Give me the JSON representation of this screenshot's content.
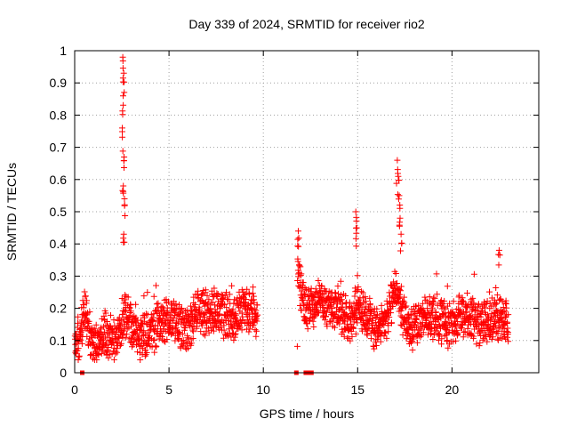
{
  "chart_data": {
    "type": "scatter",
    "title": "Day 339 of 2024, SRMTID for receiver rio2",
    "xlabel": "GPS time / hours",
    "ylabel": "SRMTID / TECUs",
    "xlim": [
      0,
      24.6
    ],
    "ylim": [
      0,
      1
    ],
    "xticks": [
      0,
      5,
      10,
      15,
      20
    ],
    "yticks": [
      0,
      0.1,
      0.2,
      0.3,
      0.4,
      0.5,
      0.6,
      0.7,
      0.8,
      0.9,
      1
    ],
    "xtick_labels": [
      "0",
      "5",
      "10",
      "15",
      "20"
    ],
    "ytick_labels": [
      "0",
      "0.1",
      "0.2",
      "0.3",
      "0.4",
      "0.5",
      "0.6",
      "0.7",
      "0.8",
      "0.9",
      "1"
    ],
    "grid": true,
    "marker": "+",
    "series_color": "#ff0000",
    "series": [
      {
        "name": "SRMTID",
        "segments": [
          {
            "x_start": 0.0,
            "x_end": 9.7,
            "baseline": [
              [
                0.0,
                0.08
              ],
              [
                0.3,
                0.1
              ],
              [
                0.5,
                0.2
              ],
              [
                0.8,
                0.12
              ],
              [
                1.0,
                0.08
              ],
              [
                1.5,
                0.12
              ],
              [
                2.0,
                0.1
              ],
              [
                2.3,
                0.12
              ],
              [
                2.6,
                0.17
              ],
              [
                3.0,
                0.15
              ],
              [
                3.5,
                0.11
              ],
              [
                4.0,
                0.12
              ],
              [
                4.5,
                0.16
              ],
              [
                5.0,
                0.17
              ],
              [
                5.5,
                0.15
              ],
              [
                6.0,
                0.13
              ],
              [
                6.5,
                0.2
              ],
              [
                7.0,
                0.18
              ],
              [
                7.5,
                0.19
              ],
              [
                8.0,
                0.18
              ],
              [
                8.5,
                0.17
              ],
              [
                9.0,
                0.19
              ],
              [
                9.5,
                0.18
              ],
              [
                9.7,
                0.17
              ]
            ]
          },
          {
            "x_start": 11.8,
            "x_end": 23.0,
            "baseline": [
              [
                11.8,
                0.32
              ],
              [
                12.2,
                0.21
              ],
              [
                13.0,
                0.22
              ],
              [
                13.5,
                0.2
              ],
              [
                14.0,
                0.2
              ],
              [
                14.5,
                0.16
              ],
              [
                15.0,
                0.2
              ],
              [
                15.5,
                0.18
              ],
              [
                16.0,
                0.13
              ],
              [
                16.5,
                0.17
              ],
              [
                17.0,
                0.25
              ],
              [
                17.3,
                0.2
              ],
              [
                17.8,
                0.14
              ],
              [
                18.5,
                0.17
              ],
              [
                19.0,
                0.18
              ],
              [
                19.5,
                0.16
              ],
              [
                20.0,
                0.15
              ],
              [
                20.5,
                0.18
              ],
              [
                21.0,
                0.17
              ],
              [
                21.5,
                0.15
              ],
              [
                22.0,
                0.17
              ],
              [
                22.6,
                0.16
              ],
              [
                23.0,
                0.14
              ]
            ]
          }
        ],
        "peaks": [
          {
            "x": 2.55,
            "y": 0.98
          },
          {
            "x": 2.6,
            "y": 0.93
          },
          {
            "x": 2.57,
            "y": 0.86
          },
          {
            "x": 2.52,
            "y": 0.76
          },
          {
            "x": 2.62,
            "y": 0.67
          },
          {
            "x": 2.58,
            "y": 0.58
          },
          {
            "x": 2.64,
            "y": 0.54
          },
          {
            "x": 2.6,
            "y": 0.43
          },
          {
            "x": 11.85,
            "y": 0.44
          },
          {
            "x": 14.9,
            "y": 0.5
          },
          {
            "x": 14.95,
            "y": 0.45
          },
          {
            "x": 17.1,
            "y": 0.66
          },
          {
            "x": 17.15,
            "y": 0.61
          },
          {
            "x": 17.2,
            "y": 0.55
          },
          {
            "x": 17.25,
            "y": 0.48
          },
          {
            "x": 17.3,
            "y": 0.43
          },
          {
            "x": 22.5,
            "y": 0.38
          }
        ],
        "zero_markers": [
          0.4,
          11.75,
          12.25,
          12.4,
          12.55
        ]
      }
    ]
  }
}
